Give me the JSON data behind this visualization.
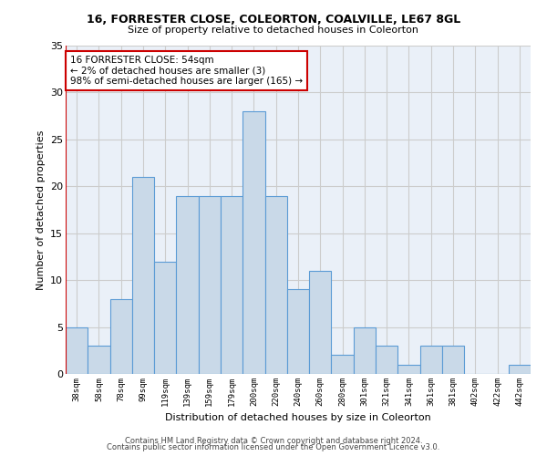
{
  "title1": "16, FORRESTER CLOSE, COLEORTON, COALVILLE, LE67 8GL",
  "title2": "Size of property relative to detached houses in Coleorton",
  "xlabel": "Distribution of detached houses by size in Coleorton",
  "ylabel": "Number of detached properties",
  "bar_categories": [
    "38sqm",
    "58sqm",
    "78sqm",
    "99sqm",
    "119sqm",
    "139sqm",
    "159sqm",
    "179sqm",
    "200sqm",
    "220sqm",
    "240sqm",
    "260sqm",
    "280sqm",
    "301sqm",
    "321sqm",
    "341sqm",
    "361sqm",
    "381sqm",
    "402sqm",
    "422sqm",
    "442sqm"
  ],
  "bar_values": [
    5,
    3,
    8,
    21,
    12,
    19,
    19,
    19,
    28,
    19,
    9,
    11,
    2,
    5,
    3,
    1,
    3,
    3,
    0,
    0,
    1
  ],
  "bar_color": "#c9d9e8",
  "bar_edge_color": "#5b9bd5",
  "subject_line_color": "#cc0000",
  "annotation_text": "16 FORRESTER CLOSE: 54sqm\n← 2% of detached houses are smaller (3)\n98% of semi-detached houses are larger (165) →",
  "annotation_box_color": "#cc0000",
  "ylim": [
    0,
    35
  ],
  "yticks": [
    0,
    5,
    10,
    15,
    20,
    25,
    30,
    35
  ],
  "grid_color": "#cccccc",
  "bg_color": "#eaf0f8",
  "footer1": "Contains HM Land Registry data © Crown copyright and database right 2024.",
  "footer2": "Contains public sector information licensed under the Open Government Licence v3.0."
}
